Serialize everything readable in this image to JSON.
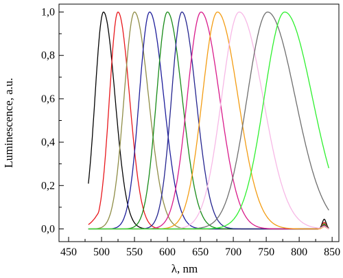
{
  "chart_data": {
    "type": "line",
    "xlabel": "λ, nm",
    "ylabel": "Luminescence, a.u.",
    "xlim": [
      450,
      850
    ],
    "ylim": [
      0,
      1.05
    ],
    "x_ticks": [
      450,
      500,
      550,
      600,
      650,
      700,
      750,
      800,
      850
    ],
    "x_tick_labels": [
      "450",
      "500",
      "550",
      "600",
      "650",
      "700",
      "750",
      "800",
      "850"
    ],
    "y_ticks": [
      0.0,
      0.2,
      0.4,
      0.6,
      0.8,
      1.0
    ],
    "y_tick_labels": [
      "0,0",
      "0,2",
      "0,4",
      "0,6",
      "0,8",
      "1,0"
    ],
    "grid": false,
    "legend": "none",
    "series": [
      {
        "color": "#000000",
        "peak": 503,
        "fwhm": 36,
        "x_start": 480,
        "x_end": 845,
        "start_value": 0.43,
        "side_peak": 0.045
      },
      {
        "color": "#e8161b",
        "peak": 525,
        "fwhm": 36,
        "x_start": 480,
        "x_end": 845,
        "start_value": 0.05,
        "side_peak": 0.03
      },
      {
        "color": "#8e8c45",
        "peak": 550,
        "fwhm": 44,
        "x_start": 480,
        "x_end": 845,
        "start_value": 0.0,
        "side_peak": 0.025
      },
      {
        "color": "#1c1c9a",
        "peak": 573,
        "fwhm": 44,
        "x_start": 480,
        "x_end": 845,
        "start_value": 0.0,
        "side_peak": 0.02
      },
      {
        "color": "#168a16",
        "peak": 600,
        "fwhm": 46,
        "x_start": 480,
        "x_end": 845,
        "start_value": 0.0,
        "side_peak": 0.02
      },
      {
        "color": "#23238f",
        "peak": 622,
        "fwhm": 44,
        "x_start": 480,
        "x_end": 845,
        "start_value": 0.0,
        "side_peak": 0.015
      },
      {
        "color": "#d9198a",
        "peak": 651,
        "fwhm": 58,
        "x_start": 480,
        "x_end": 845,
        "start_value": 0.0,
        "side_peak": 0.015
      },
      {
        "color": "#f39c12",
        "peak": 676,
        "fwhm": 64,
        "x_start": 480,
        "x_end": 845,
        "start_value": 0.0,
        "side_peak": 0.01
      },
      {
        "color": "#f7b8e6",
        "peak": 709,
        "fwhm": 74,
        "x_start": 480,
        "x_end": 845,
        "start_value": 0.0,
        "side_peak": 0.01
      },
      {
        "color": "#6e6e6e",
        "peak": 752,
        "fwhm": 86,
        "x_start": 480,
        "x_end": 845,
        "start_value": 0.0,
        "side_peak": 0.0
      },
      {
        "color": "#2df02d",
        "peak": 778,
        "fwhm": 86,
        "x_start": 480,
        "x_end": 845,
        "start_value": 0.0,
        "side_peak": 0.0
      }
    ]
  }
}
